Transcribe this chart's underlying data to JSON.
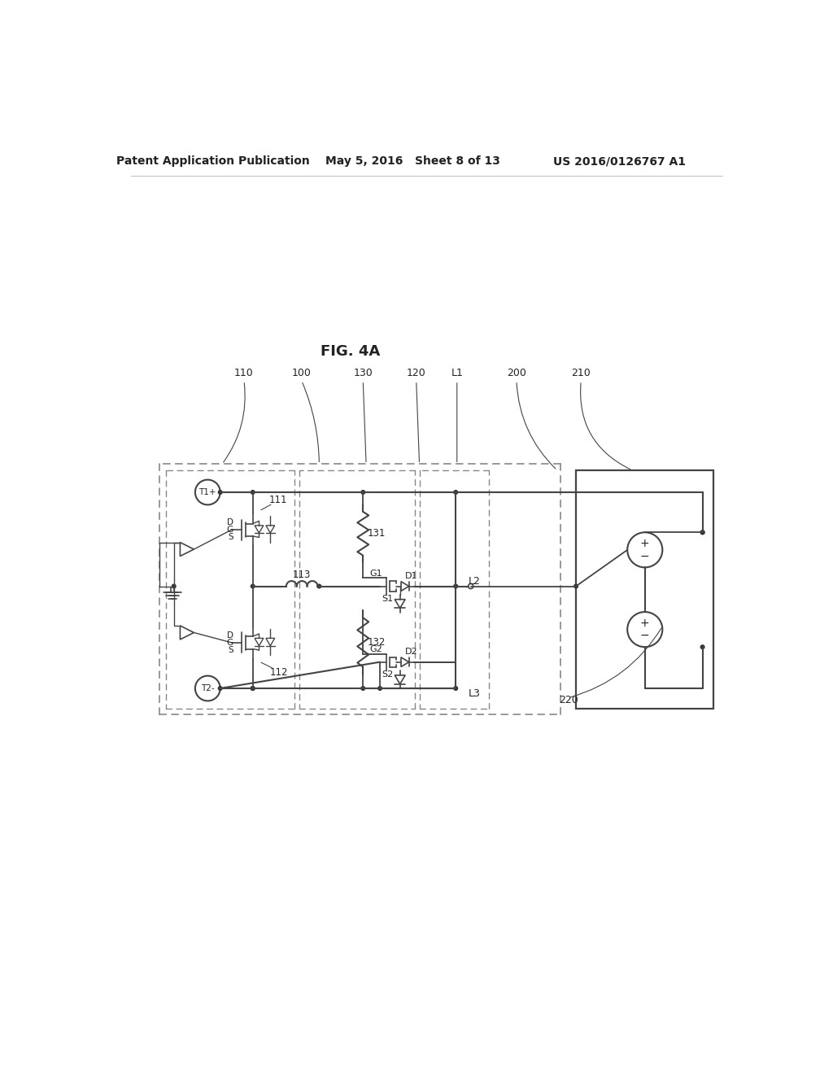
{
  "title": "FIG. 4A",
  "header_left": "Patent Application Publication",
  "header_mid": "May 5, 2016   Sheet 8 of 13",
  "header_right": "US 2016/0126767 A1",
  "bg_color": "#ffffff",
  "line_color": "#444444",
  "dashed_color": "#888888",
  "text_color": "#222222",
  "fig_width": 10.24,
  "fig_height": 13.2,
  "dpi": 100
}
